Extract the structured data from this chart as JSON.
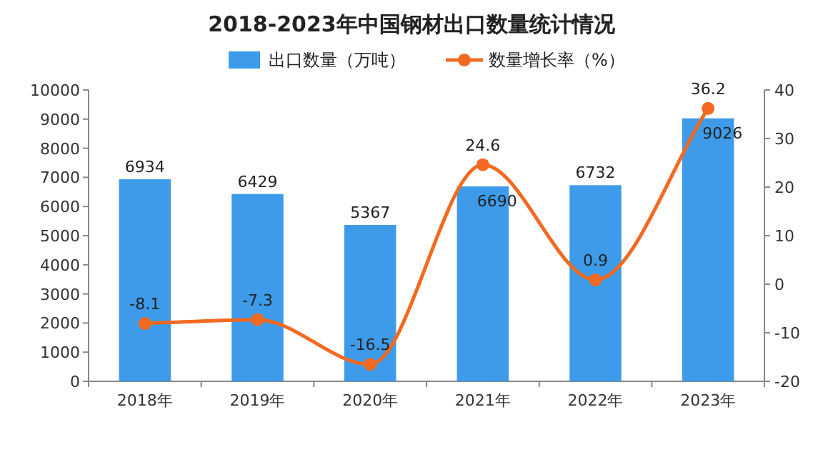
{
  "chart_data": {
    "type": "bar",
    "title": "2018-2023年中国钢材出口数量统计情况",
    "categories": [
      "2018年",
      "2019年",
      "2020年",
      "2021年",
      "2022年",
      "2023年"
    ],
    "series": [
      {
        "name": "出口数量（万吨）",
        "color": "#3d9be9",
        "values": [
          6934,
          6429,
          5367,
          6690,
          6732,
          9026
        ]
      },
      {
        "name": "数量增长率（%）",
        "type": "line",
        "axis": "y2",
        "color": "#f26a21",
        "marker": "circle",
        "values": [
          -8.1,
          -7.3,
          -16.5,
          24.6,
          0.9,
          36.2
        ]
      }
    ],
    "ylim": [
      0,
      10000
    ],
    "yticks": [
      0,
      1000,
      2000,
      3000,
      4000,
      5000,
      6000,
      7000,
      8000,
      9000,
      10000
    ],
    "y2lim": [
      -20,
      40
    ],
    "y2ticks": [
      -20,
      -10,
      0,
      10,
      20,
      30,
      40
    ],
    "data_labels": true,
    "legend": "top",
    "grid": false
  }
}
